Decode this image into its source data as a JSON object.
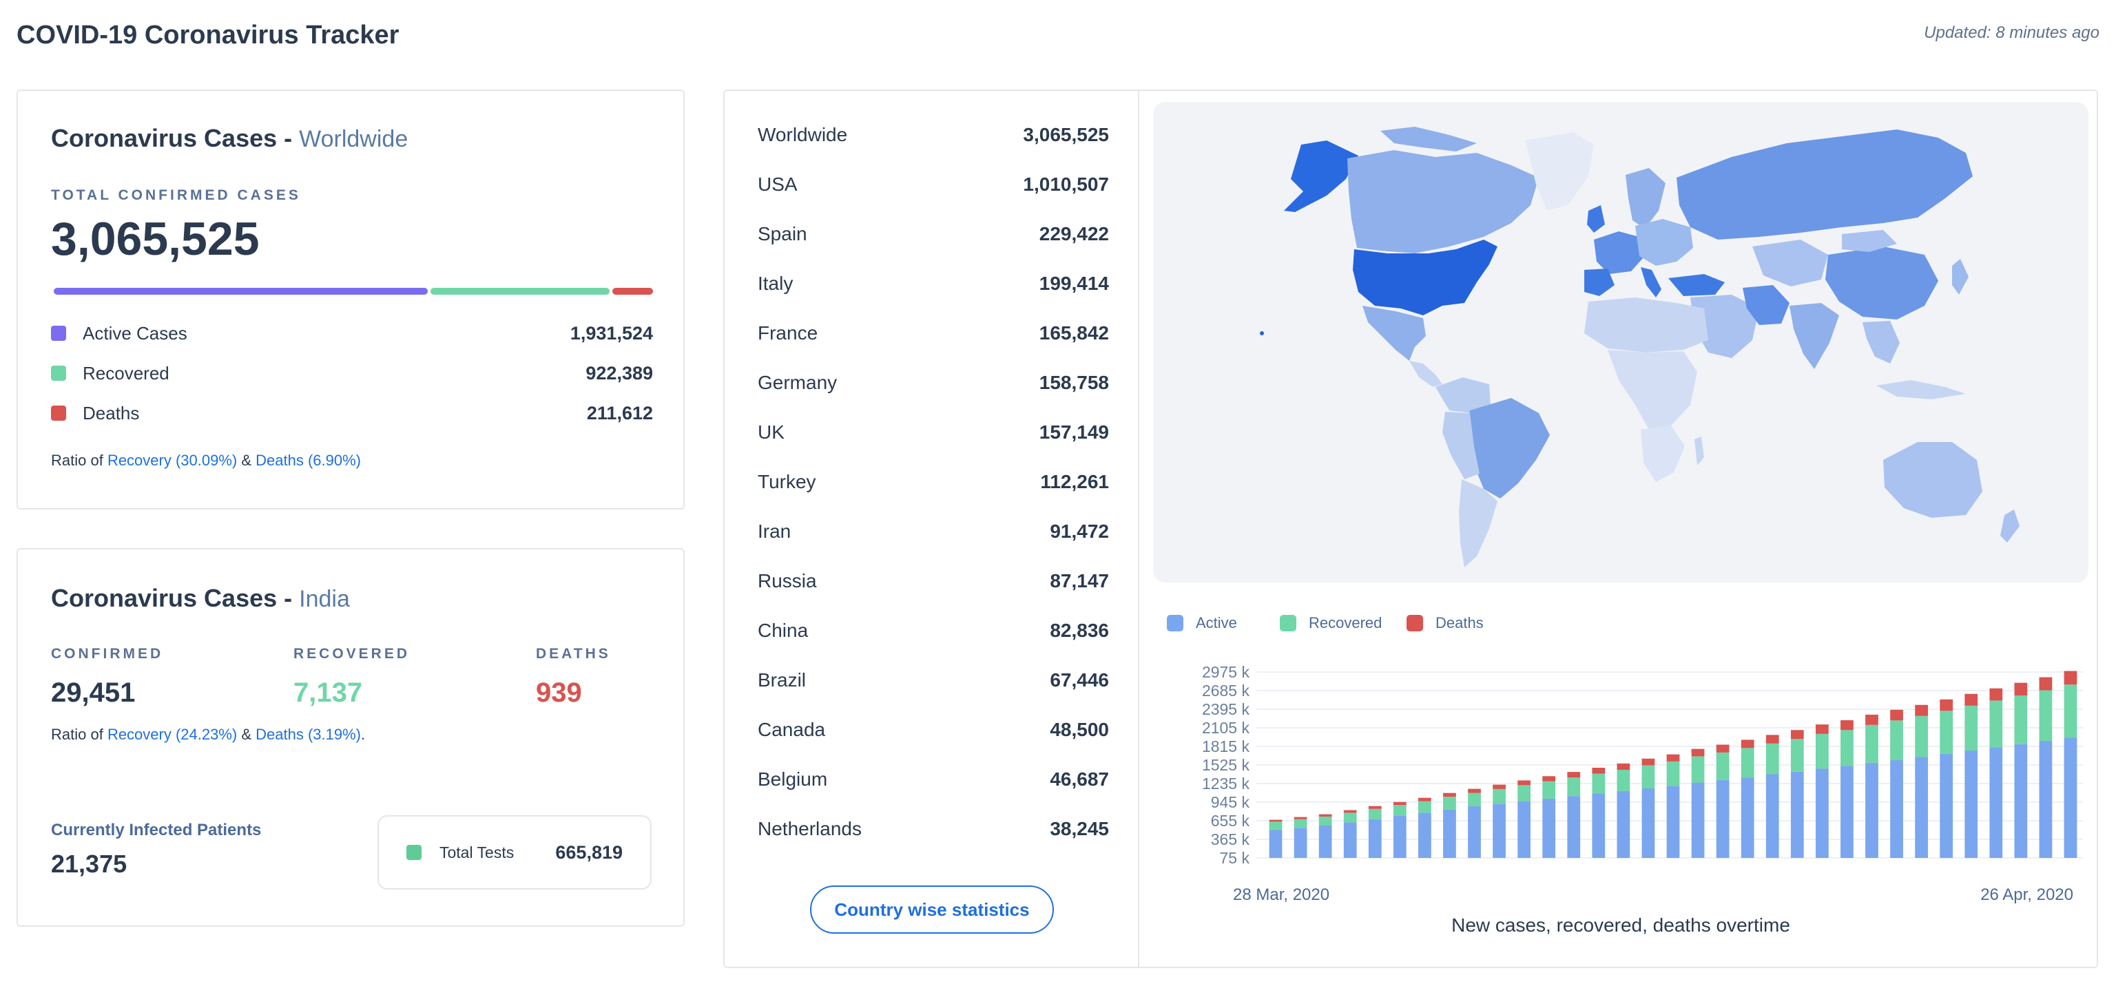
{
  "header": {
    "title": "COVID-19 Coronavirus Tracker",
    "updated": "Updated: 8 minutes ago"
  },
  "colors": {
    "active": "#7b6cf0",
    "recovered": "#6fd6a8",
    "deaths": "#d9534f",
    "link": "#1e6fe0",
    "chart_active": "#7aa6ef",
    "chart_recovered": "#6fd6a8",
    "chart_deaths": "#d9534f"
  },
  "worldwide": {
    "title": "Coronavirus Cases -",
    "region": "Worldwide",
    "total_label": "TOTAL CONFIRMED CASES",
    "total": "3,065,525",
    "progress": {
      "active": 0.63,
      "recovered": 0.301,
      "deaths": 0.069
    },
    "rows": [
      {
        "label": "Active Cases",
        "value": "1,931,524",
        "color": "#7b6cf0"
      },
      {
        "label": "Recovered",
        "value": "922,389",
        "color": "#6fd6a8"
      },
      {
        "label": "Deaths",
        "value": "211,612",
        "color": "#d9534f"
      }
    ],
    "ratio": {
      "prefix": "Ratio of ",
      "recovery": "Recovery (30.09%)",
      "and": " & ",
      "deaths": "Deaths (6.90%)",
      "suffix": ""
    }
  },
  "india": {
    "title": "Coronavirus Cases -",
    "region": "India",
    "stats": [
      {
        "label": "CONFIRMED",
        "value": "29,451",
        "color": "#2c3a4f"
      },
      {
        "label": "RECOVERED",
        "value": "7,137",
        "color": "#6fd6a8"
      },
      {
        "label": "DEATHS",
        "value": "939",
        "color": "#d9534f"
      }
    ],
    "ratio": {
      "prefix": "Ratio of ",
      "recovery": "Recovery (24.23%)",
      "and": " & ",
      "deaths": "Deaths (3.19%)",
      "suffix": "."
    },
    "patients_label": "Currently Infected Patients",
    "patients_value": "21,375",
    "tests_label": "Total Tests",
    "tests_value": "665,819"
  },
  "countries": [
    {
      "name": "Worldwide",
      "count": "3,065,525"
    },
    {
      "name": "USA",
      "count": "1,010,507"
    },
    {
      "name": "Spain",
      "count": "229,422"
    },
    {
      "name": "Italy",
      "count": "199,414"
    },
    {
      "name": "France",
      "count": "165,842"
    },
    {
      "name": "Germany",
      "count": "158,758"
    },
    {
      "name": "UK",
      "count": "157,149"
    },
    {
      "name": "Turkey",
      "count": "112,261"
    },
    {
      "name": "Iran",
      "count": "91,472"
    },
    {
      "name": "Russia",
      "count": "87,147"
    },
    {
      "name": "China",
      "count": "82,836"
    },
    {
      "name": "Brazil",
      "count": "67,446"
    },
    {
      "name": "Canada",
      "count": "48,500"
    },
    {
      "name": "Belgium",
      "count": "46,687"
    },
    {
      "name": "Netherlands",
      "count": "38,245"
    }
  ],
  "country_button": "Country wise statistics",
  "chart_data": {
    "type": "bar",
    "stacked": true,
    "legend": [
      "Active",
      "Recovered",
      "Deaths"
    ],
    "ytick_labels": [
      "2975 k",
      "2685 k",
      "2395 k",
      "2105 k",
      "1815 k",
      "1525 k",
      "1235 k",
      "945 k",
      "655 k",
      "365 k",
      "75 k"
    ],
    "ylim": [
      75,
      2975
    ],
    "x_start": "28 Mar, 2020",
    "x_end": "26 Apr, 2020",
    "caption": "New cases, recovered, deaths overtime",
    "series": [
      {
        "name": "Active",
        "values": [
          510,
          545,
          580,
          630,
          680,
          730,
          780,
          830,
          880,
          920,
          960,
          1000,
          1040,
          1080,
          1120,
          1160,
          1200,
          1250,
          1290,
          1330,
          1380,
          1420,
          1470,
          1510,
          1560,
          1600,
          1650,
          1700,
          1750,
          1800,
          1850,
          1900,
          1950
        ]
      },
      {
        "name": "Recovered",
        "values": [
          130,
          135,
          140,
          150,
          160,
          170,
          180,
          200,
          210,
          230,
          250,
          270,
          290,
          310,
          330,
          360,
          380,
          410,
          430,
          460,
          480,
          510,
          540,
          560,
          590,
          620,
          640,
          670,
          700,
          730,
          760,
          790,
          830
        ]
      },
      {
        "name": "Deaths",
        "values": [
          30,
          33,
          36,
          40,
          44,
          48,
          53,
          58,
          63,
          68,
          74,
          80,
          86,
          92,
          98,
          104,
          110,
          116,
          122,
          128,
          134,
          140,
          147,
          153,
          160,
          166,
          172,
          178,
          184,
          190,
          197,
          204,
          211
        ]
      }
    ]
  }
}
